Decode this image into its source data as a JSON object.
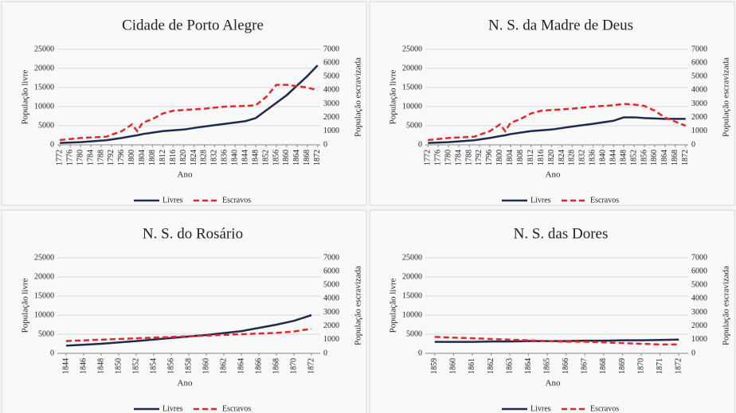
{
  "chart_data": [
    {
      "type": "line",
      "title": "Cidade de Porto Alegre",
      "xlabel": "Ano",
      "ylabel": "População livre",
      "y2label": "População escravizada",
      "x": [
        1772,
        1780,
        1790,
        1796,
        1800,
        1802,
        1804,
        1808,
        1812,
        1816,
        1820,
        1828,
        1836,
        1844,
        1848,
        1852,
        1856,
        1860,
        1864,
        1868,
        1872
      ],
      "series": [
        {
          "name": "Livres",
          "color": "#1f2a4f",
          "style": "solid",
          "values": [
            500,
            700,
            1200,
            1800,
            2300,
            2500,
            2800,
            3200,
            3600,
            3800,
            4000,
            4800,
            5500,
            6200,
            7000,
            9000,
            11000,
            13000,
            15500,
            18000,
            20800
          ]
        },
        {
          "name": "Escravos",
          "color": "#e8262a",
          "style": "dashed",
          "axis": "y2",
          "values": [
            350,
            500,
            600,
            1000,
            1500,
            1000,
            1600,
            1900,
            2300,
            2500,
            2550,
            2650,
            2800,
            2850,
            2900,
            3500,
            4400,
            4400,
            4300,
            4200,
            4000
          ]
        }
      ],
      "xlim": [
        1771,
        1873
      ],
      "xticks": [
        1772,
        1776,
        1780,
        1784,
        1788,
        1792,
        1796,
        1800,
        1804,
        1808,
        1812,
        1816,
        1820,
        1824,
        1828,
        1832,
        1836,
        1840,
        1844,
        1848,
        1852,
        1856,
        1860,
        1864,
        1868,
        1872
      ],
      "ylim": [
        0,
        25000
      ],
      "yticks": [
        0,
        5000,
        10000,
        15000,
        20000,
        25000
      ],
      "y2lim": [
        0,
        7000
      ],
      "y2ticks": [
        0,
        1000,
        2000,
        3000,
        4000,
        5000,
        6000,
        7000
      ],
      "legend": "bottom"
    },
    {
      "type": "line",
      "title": "N. S. da Madre de Deus",
      "xlabel": "Ano",
      "ylabel": "População livre",
      "y2label": "População escravizada",
      "x": [
        1772,
        1780,
        1790,
        1796,
        1800,
        1802,
        1804,
        1808,
        1812,
        1816,
        1820,
        1828,
        1836,
        1844,
        1848,
        1852,
        1856,
        1860,
        1864,
        1868,
        1872
      ],
      "series": [
        {
          "name": "Livres",
          "color": "#1f2a4f",
          "style": "solid",
          "values": [
            500,
            700,
            1200,
            1800,
            2300,
            2500,
            2800,
            3200,
            3600,
            3800,
            4000,
            4800,
            5500,
            6300,
            7200,
            7200,
            7000,
            6900,
            6800,
            6800,
            6800
          ]
        },
        {
          "name": "Escravos",
          "color": "#e8262a",
          "style": "dashed",
          "axis": "y2",
          "values": [
            350,
            500,
            600,
            1000,
            1500,
            1000,
            1600,
            1900,
            2300,
            2500,
            2550,
            2650,
            2800,
            2900,
            3000,
            2950,
            2850,
            2500,
            2000,
            1700,
            1400
          ]
        }
      ],
      "xlim": [
        1771,
        1873
      ],
      "xticks": [
        1772,
        1776,
        1780,
        1784,
        1788,
        1792,
        1796,
        1800,
        1804,
        1808,
        1812,
        1816,
        1820,
        1824,
        1828,
        1832,
        1836,
        1840,
        1844,
        1848,
        1852,
        1856,
        1860,
        1864,
        1868,
        1872
      ],
      "ylim": [
        0,
        25000
      ],
      "yticks": [
        0,
        5000,
        10000,
        15000,
        20000,
        25000
      ],
      "y2lim": [
        0,
        7000
      ],
      "y2ticks": [
        0,
        1000,
        2000,
        3000,
        4000,
        5000,
        6000,
        7000
      ],
      "legend": "bottom"
    },
    {
      "type": "line",
      "title": "N. S. do Rosário",
      "xlabel": "Ano",
      "ylabel": "População livre",
      "y2label": "População escravizada",
      "x": [
        1844,
        1848,
        1852,
        1856,
        1860,
        1864,
        1868,
        1870,
        1872
      ],
      "series": [
        {
          "name": "Livres",
          "color": "#1f2a4f",
          "style": "solid",
          "values": [
            2000,
            2500,
            3200,
            4000,
            4800,
            5800,
            7500,
            8500,
            10000
          ]
        },
        {
          "name": "Escravos",
          "color": "#e8262a",
          "style": "dashed",
          "axis": "y2",
          "values": [
            900,
            1000,
            1100,
            1200,
            1300,
            1400,
            1500,
            1600,
            1800
          ]
        }
      ],
      "xlim": [
        1843,
        1873
      ],
      "xticks": [
        1844,
        1846,
        1848,
        1850,
        1852,
        1854,
        1856,
        1858,
        1860,
        1862,
        1864,
        1866,
        1868,
        1870,
        1872
      ],
      "ylim": [
        0,
        25000
      ],
      "yticks": [
        0,
        5000,
        10000,
        15000,
        20000,
        25000
      ],
      "y2lim": [
        0,
        7000
      ],
      "y2ticks": [
        0,
        1000,
        2000,
        3000,
        4000,
        5000,
        6000,
        7000
      ],
      "legend": "bottom"
    },
    {
      "type": "line",
      "title": "N. S. das Dores",
      "xlabel": "Ano",
      "ylabel": "População livre",
      "y2label": "População escravizada",
      "x": [
        1859,
        1860,
        1861,
        1862,
        1863,
        1864,
        1865,
        1866,
        1867,
        1868,
        1869,
        1870,
        1871,
        1872
      ],
      "series": [
        {
          "name": "Livres",
          "color": "#1f2a4f",
          "style": "solid",
          "values": [
            3000,
            3000,
            3000,
            3100,
            3100,
            3200,
            3200,
            3200,
            3300,
            3300,
            3400,
            3400,
            3500,
            3600
          ]
        },
        {
          "name": "Escravos",
          "color": "#e8262a",
          "style": "dashed",
          "axis": "y2",
          "values": [
            1200,
            1150,
            1100,
            1050,
            1000,
            950,
            900,
            850,
            850,
            800,
            750,
            700,
            650,
            650
          ]
        }
      ],
      "xlim": [
        1858.5,
        1872.5
      ],
      "xticks": [
        1859,
        1860,
        1861,
        1862,
        1863,
        1864,
        1865,
        1866,
        1867,
        1868,
        1869,
        1870,
        1871,
        1872
      ],
      "ylim": [
        0,
        25000
      ],
      "yticks": [
        0,
        5000,
        10000,
        15000,
        20000,
        25000
      ],
      "y2lim": [
        0,
        7000
      ],
      "y2ticks": [
        0,
        1000,
        2000,
        3000,
        4000,
        5000,
        6000,
        7000
      ],
      "legend": "bottom"
    }
  ]
}
